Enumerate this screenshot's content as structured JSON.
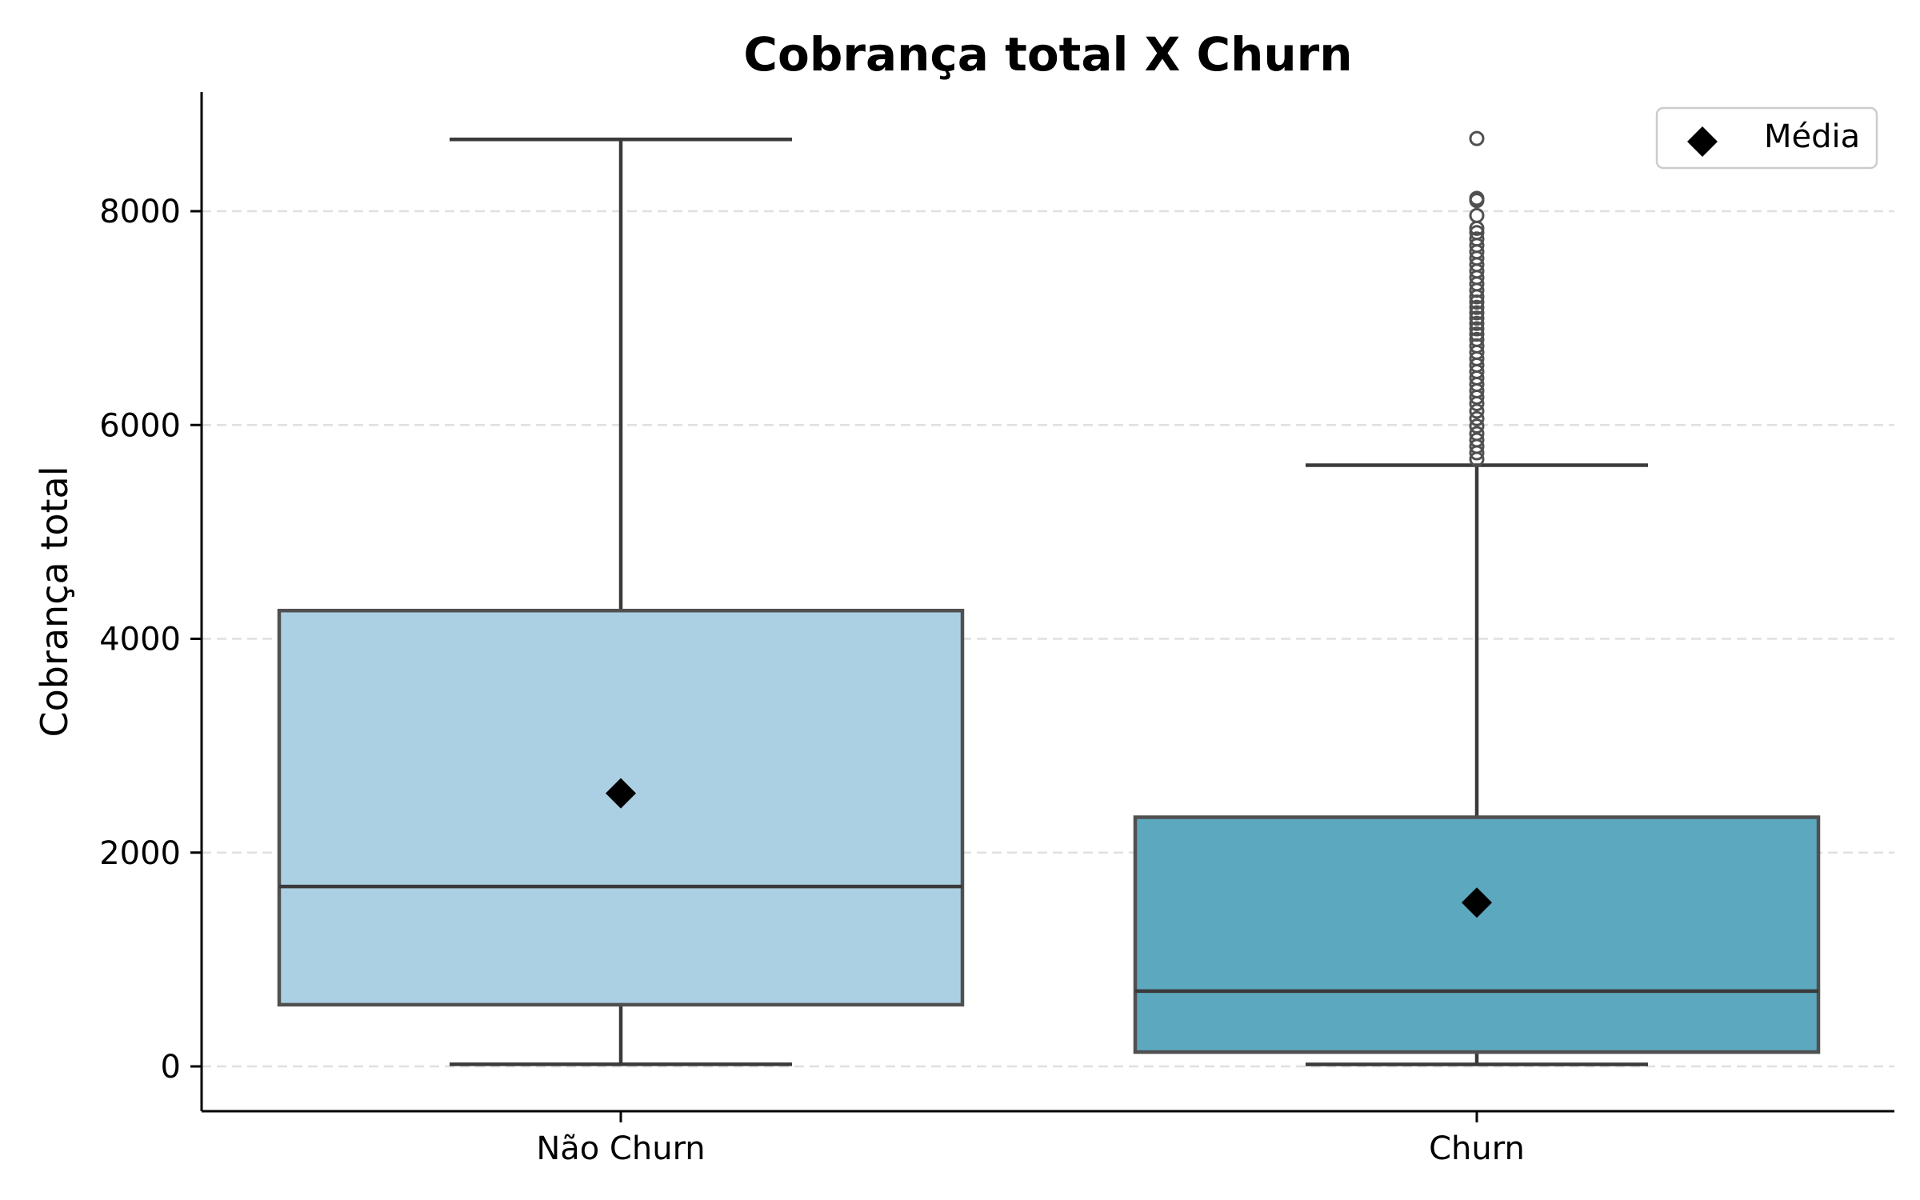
{
  "chart_data": {
    "type": "boxplot",
    "title": "Cobrança total X Churn",
    "xlabel": "",
    "ylabel": "Cobrança total",
    "ylim": [
      -400,
      9100
    ],
    "yticks": [
      0,
      2000,
      4000,
      6000,
      8000
    ],
    "ytick_labels": [
      "0",
      "2000",
      "4000",
      "6000",
      "8000"
    ],
    "grid": "y-dashed",
    "legend": {
      "position": "top-right",
      "label": "Média",
      "marker": "diamond"
    },
    "categories": [
      "Não Churn",
      "Churn"
    ],
    "boxes": [
      {
        "category": "Não Churn",
        "color": "#acd0e3",
        "whisker_low": 20,
        "q1": 577,
        "median": 1683,
        "q3": 4264,
        "whisker_high": 8672,
        "mean": 2555,
        "outliers": []
      },
      {
        "category": "Churn",
        "color": "#5ca8bf",
        "whisker_low": 19,
        "q1": 134,
        "median": 704,
        "q3": 2331,
        "whisker_high": 5624,
        "mean": 1532,
        "outliers": [
          5680,
          5740,
          5800,
          5860,
          5920,
          5990,
          6060,
          6130,
          6200,
          6260,
          6320,
          6380,
          6440,
          6500,
          6560,
          6620,
          6680,
          6740,
          6800,
          6850,
          6900,
          6950,
          7000,
          7050,
          7100,
          7150,
          7200,
          7260,
          7320,
          7380,
          7440,
          7500,
          7560,
          7620,
          7680,
          7740,
          7800,
          7840,
          7960,
          8100,
          8120,
          8680
        ]
      }
    ],
    "colors": {
      "axis": "#000000",
      "box_edge": "#505050",
      "whisker": "#3a3a3a",
      "mean_marker": "#000000",
      "grid": "#e0e0e0"
    }
  }
}
